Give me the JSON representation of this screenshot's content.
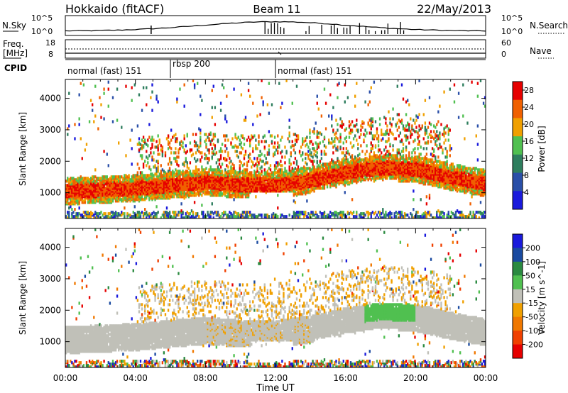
{
  "header": {
    "station": "Hokkaido (fitACF)",
    "beam": "Beam 11",
    "date": "22/May/2013"
  },
  "top_panels": {
    "nsky_label": "N.Sky",
    "nsearch_label": "N.Search",
    "nsky_ticks": [
      "10^5",
      "10^0"
    ],
    "nsearch_ticks": [
      "10^5",
      "10^0"
    ],
    "freq_label_1": "Freq.",
    "freq_label_2": "[MHz]",
    "freq_ticks": [
      "18",
      "8"
    ],
    "nave_label": "Nave",
    "nave_ticks": [
      "60",
      "0"
    ],
    "cpid_label": "CPID",
    "cpid_segments": [
      {
        "label": "normal (fast) 151",
        "start_h": 0,
        "end_h": 6
      },
      {
        "label": "rbsp 200",
        "start_h": 6,
        "end_h": 12
      },
      {
        "label": "normal (fast) 151",
        "start_h": 12,
        "end_h": 24
      }
    ]
  },
  "colors": {
    "power": [
      "#1a1adc",
      "#2a4fa8",
      "#2e7e5e",
      "#50c050",
      "#f0a000",
      "#f06000",
      "#e60000"
    ],
    "velocity": [
      "#e60000",
      "#f04000",
      "#f07800",
      "#f0a000",
      "#c0c0b8",
      "#50c050",
      "#2a8a40",
      "#1a4aa0",
      "#1a1adc"
    ]
  },
  "chart_data": [
    {
      "type": "heatmap",
      "name": "power",
      "ylabel": "Slant Range [km]",
      "y_ticks": [
        1000,
        2000,
        3000,
        4000
      ],
      "ylim": [
        180,
        4600
      ],
      "xlim": [
        0,
        24
      ],
      "colorbar_label": "Power [dB]",
      "colorbar_ticks": [
        "4",
        "8",
        "12",
        "16",
        "20",
        "24",
        "28"
      ],
      "colorbar_range": [
        0,
        30
      ],
      "main_band_center_km": [
        [
          0,
          1050
        ],
        [
          2,
          1100
        ],
        [
          4,
          1150
        ],
        [
          6,
          1250
        ],
        [
          8,
          1350
        ],
        [
          10,
          1250
        ],
        [
          12,
          1250
        ],
        [
          14,
          1400
        ],
        [
          16,
          1650
        ],
        [
          18,
          1800
        ],
        [
          20,
          1750
        ],
        [
          22,
          1500
        ],
        [
          24,
          1300
        ]
      ]
    },
    {
      "type": "heatmap",
      "name": "velocity",
      "ylabel": "Slant Range [km]",
      "y_ticks": [
        1000,
        2000,
        3000,
        4000
      ],
      "ylim": [
        180,
        4600
      ],
      "xlim": [
        0,
        24
      ],
      "xlabel": "Time UT",
      "x_ticks": [
        "00:00",
        "04:00",
        "08:00",
        "12:00",
        "16:00",
        "20:00",
        "00:00"
      ],
      "colorbar_label": "Velocity [m s^-1]",
      "colorbar_ticks": [
        "200",
        "100",
        "50",
        "15",
        "-15",
        "-50",
        "-100",
        "-200"
      ]
    }
  ]
}
